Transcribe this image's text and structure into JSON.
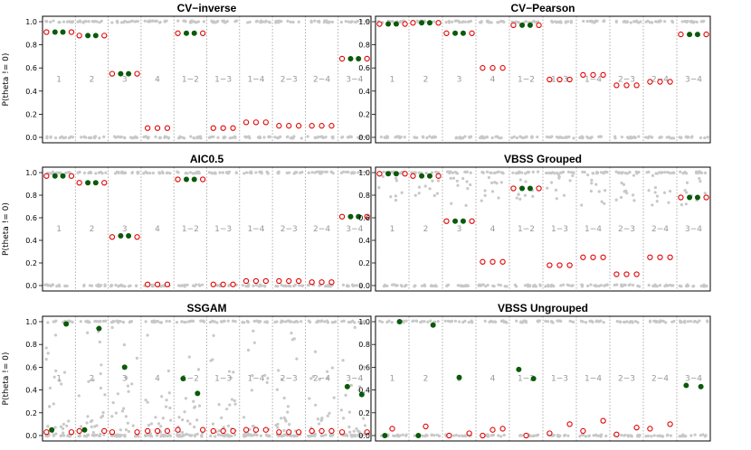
{
  "chart_data": [
    {
      "type": "scatter",
      "title": "CV−inverse",
      "ylabel": "P(theta != 0)",
      "ylim": [
        0,
        1
      ],
      "yticks": [
        "0.0",
        "0.2",
        "0.4",
        "0.6",
        "0.8",
        "1.0"
      ],
      "groups": [
        "1",
        "2",
        "3",
        "4",
        "1−2",
        "1−3",
        "1−4",
        "2−3",
        "2−4",
        "3−4"
      ],
      "true_nonzero": [
        0.91,
        0.88,
        0.55,
        null,
        0.9,
        null,
        null,
        null,
        null,
        0.68
      ],
      "true_zero": [
        0.91,
        0.88,
        0.55,
        0.08,
        0.9,
        0.08,
        0.13,
        0.1,
        0.1,
        0.68
      ],
      "simulation_points": "0 and 1 only"
    },
    {
      "type": "scatter",
      "title": "CV−Pearson",
      "ylabel": "",
      "ylim": [
        0,
        1
      ],
      "yticks": [
        "0.0",
        "0.2",
        "0.4",
        "0.6",
        "0.8",
        "1.0"
      ],
      "groups": [
        "1",
        "2",
        "3",
        "4",
        "1−2",
        "1−3",
        "1−4",
        "2−3",
        "2−4",
        "3−4"
      ],
      "true_nonzero": [
        0.98,
        0.99,
        0.9,
        null,
        0.97,
        null,
        null,
        null,
        null,
        0.89
      ],
      "true_zero": [
        0.98,
        0.99,
        0.9,
        0.6,
        0.97,
        0.5,
        0.54,
        0.45,
        0.48,
        0.89
      ],
      "simulation_points": "0 and 1 only"
    },
    {
      "type": "scatter",
      "title": "AIC0.5",
      "ylabel": "P(theta != 0)",
      "ylim": [
        0,
        1
      ],
      "yticks": [
        "0.0",
        "0.2",
        "0.4",
        "0.6",
        "0.8",
        "1.0"
      ],
      "groups": [
        "1",
        "2",
        "3",
        "4",
        "1−2",
        "1−3",
        "1−4",
        "2−3",
        "2−4",
        "3−4"
      ],
      "true_nonzero": [
        0.97,
        0.91,
        0.44,
        null,
        0.94,
        null,
        null,
        null,
        null,
        0.61
      ],
      "true_zero": [
        0.97,
        0.91,
        0.43,
        0.01,
        0.94,
        0.01,
        0.04,
        0.04,
        0.03,
        0.61
      ],
      "simulation_points": "0 and 1 only"
    },
    {
      "type": "scatter",
      "title": "VBSS Grouped",
      "ylabel": "",
      "ylim": [
        0,
        1
      ],
      "yticks": [
        "0.0",
        "0.2",
        "0.4",
        "0.6",
        "0.8",
        "1.0"
      ],
      "groups": [
        "1",
        "2",
        "3",
        "4",
        "1−2",
        "1−3",
        "1−4",
        "2−3",
        "2−4",
        "3−4"
      ],
      "true_nonzero": [
        0.99,
        0.97,
        0.57,
        null,
        0.86,
        null,
        null,
        null,
        null,
        0.78
      ],
      "true_zero": [
        0.99,
        0.97,
        0.57,
        0.21,
        0.86,
        0.18,
        0.25,
        0.1,
        0.25,
        0.78
      ],
      "simulation_points": "0, 1 and scattered intermediate"
    },
    {
      "type": "scatter",
      "title": "SSGAM",
      "ylabel": "P(theta != 0)",
      "ylim": [
        0,
        1
      ],
      "yticks": [
        "0.0",
        "0.2",
        "0.4",
        "0.6",
        "0.8",
        "1.0"
      ],
      "groups": [
        "1",
        "2",
        "3",
        "4",
        "1−2",
        "1−3",
        "1−4",
        "2−3",
        "2−4",
        "3−4"
      ],
      "true_nonzero": [
        [
          0.05,
          0.98
        ],
        [
          0.05,
          0.94
        ],
        [
          0.6
        ],
        null,
        [
          0.5,
          0.37
        ],
        null,
        null,
        null,
        null,
        [
          0.43,
          0.36
        ]
      ],
      "true_zero": [
        0.03,
        0.04,
        0.03,
        0.04,
        0.05,
        0.04,
        0.05,
        0.03,
        0.04,
        0.03
      ],
      "simulation_points": "spread over the full range"
    },
    {
      "type": "scatter",
      "title": "VBSS Ungrouped",
      "ylabel": "",
      "ylim": [
        0,
        1
      ],
      "yticks": [
        "0.0",
        "0.2",
        "0.4",
        "0.6",
        "0.8",
        "1.0"
      ],
      "groups": [
        "1",
        "2",
        "3",
        "4",
        "1−2",
        "1−3",
        "1−4",
        "2−3",
        "2−4",
        "3−4"
      ],
      "true_nonzero": [
        [
          0.0,
          1.0
        ],
        [
          0.0,
          0.97
        ],
        [
          0.51
        ],
        null,
        [
          0.58,
          0.5
        ],
        null,
        null,
        null,
        null,
        [
          0.44,
          0.43
        ]
      ],
      "true_zero": [
        [
          0.06
        ],
        [
          0.08
        ],
        [
          0.0,
          0.02
        ],
        [
          0.0,
          0.05,
          0.06
        ],
        [
          0.0
        ],
        [
          0.02,
          0.1
        ],
        [
          0.04,
          0.13
        ],
        [
          0.01,
          0.07
        ],
        [
          0.06,
          0.1
        ],
        []
      ],
      "simulation_points": "mostly 0 and 1"
    }
  ],
  "colors": {
    "true_nonzero": "#0a5a0a",
    "true_zero": "#e00000",
    "simulation": "#c8c8c8",
    "separator": "#999999",
    "frame": "#000000"
  }
}
